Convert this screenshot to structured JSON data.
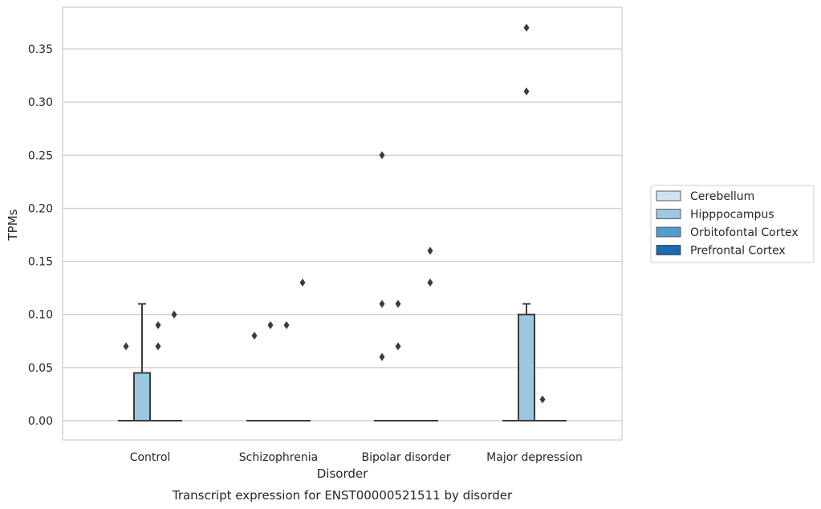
{
  "chart_data": {
    "type": "box",
    "title": "",
    "caption": "Transcript expression for ENST00000521511 by disorder",
    "xlabel": "Disorder",
    "ylabel": "TPMs",
    "ylim": [
      -0.018,
      0.389
    ],
    "yticks": [
      0.0,
      0.05,
      0.1,
      0.15,
      0.2,
      0.25,
      0.3,
      0.35
    ],
    "ytick_labels": [
      "0.00",
      "0.05",
      "0.10",
      "0.15",
      "0.20",
      "0.25",
      "0.30",
      "0.35"
    ],
    "grid": true,
    "legend_position": "right",
    "categories": [
      "Control",
      "Schizophrenia",
      "Bipolar disorder",
      "Major depression"
    ],
    "series": [
      {
        "name": "Cerebellum",
        "color": "#d0e1f2",
        "boxes": [
          {
            "q1": 0,
            "median": 0,
            "q3": 0,
            "whisker_low": 0,
            "whisker_high": 0,
            "outliers": [
              0.07
            ]
          },
          {
            "q1": 0,
            "median": 0,
            "q3": 0,
            "whisker_low": 0,
            "whisker_high": 0,
            "outliers": [
              0.08
            ]
          },
          {
            "q1": 0,
            "median": 0,
            "q3": 0,
            "whisker_low": 0,
            "whisker_high": 0,
            "outliers": [
              0.06,
              0.11,
              0.25
            ]
          },
          {
            "q1": 0,
            "median": 0,
            "q3": 0,
            "whisker_low": 0,
            "whisker_high": 0,
            "outliers": []
          }
        ]
      },
      {
        "name": "Hipppocampus",
        "color": "#9ac8e0",
        "boxes": [
          {
            "q1": 0,
            "median": 0,
            "q3": 0.045,
            "whisker_low": 0,
            "whisker_high": 0.11,
            "outliers": []
          },
          {
            "q1": 0,
            "median": 0,
            "q3": 0,
            "whisker_low": 0,
            "whisker_high": 0,
            "outliers": [
              0.09
            ]
          },
          {
            "q1": 0,
            "median": 0,
            "q3": 0,
            "whisker_low": 0,
            "whisker_high": 0,
            "outliers": [
              0.07,
              0.11
            ]
          },
          {
            "q1": 0,
            "median": 0,
            "q3": 0.1,
            "whisker_low": 0,
            "whisker_high": 0.11,
            "outliers": [
              0.31,
              0.37
            ]
          }
        ]
      },
      {
        "name": "Orbitofontal Cortex",
        "color": "#529dcc",
        "boxes": [
          {
            "q1": 0,
            "median": 0,
            "q3": 0,
            "whisker_low": 0,
            "whisker_high": 0,
            "outliers": [
              0.07,
              0.09
            ]
          },
          {
            "q1": 0,
            "median": 0,
            "q3": 0,
            "whisker_low": 0,
            "whisker_high": 0,
            "outliers": [
              0.09
            ]
          },
          {
            "q1": 0,
            "median": 0,
            "q3": 0,
            "whisker_low": 0,
            "whisker_high": 0,
            "outliers": []
          },
          {
            "q1": 0,
            "median": 0,
            "q3": 0,
            "whisker_low": 0,
            "whisker_high": 0,
            "outliers": [
              0.02
            ]
          }
        ]
      },
      {
        "name": "Prefrontal Cortex",
        "color": "#1c6aaf",
        "boxes": [
          {
            "q1": 0,
            "median": 0,
            "q3": 0,
            "whisker_low": 0,
            "whisker_high": 0,
            "outliers": [
              0.1
            ]
          },
          {
            "q1": 0,
            "median": 0,
            "q3": 0,
            "whisker_low": 0,
            "whisker_high": 0,
            "outliers": [
              0.13
            ]
          },
          {
            "q1": 0,
            "median": 0,
            "q3": 0,
            "whisker_low": 0,
            "whisker_high": 0,
            "outliers": [
              0.13,
              0.16
            ]
          },
          {
            "q1": 0,
            "median": 0,
            "q3": 0,
            "whisker_low": 0,
            "whisker_high": 0,
            "outliers": []
          }
        ]
      }
    ]
  }
}
